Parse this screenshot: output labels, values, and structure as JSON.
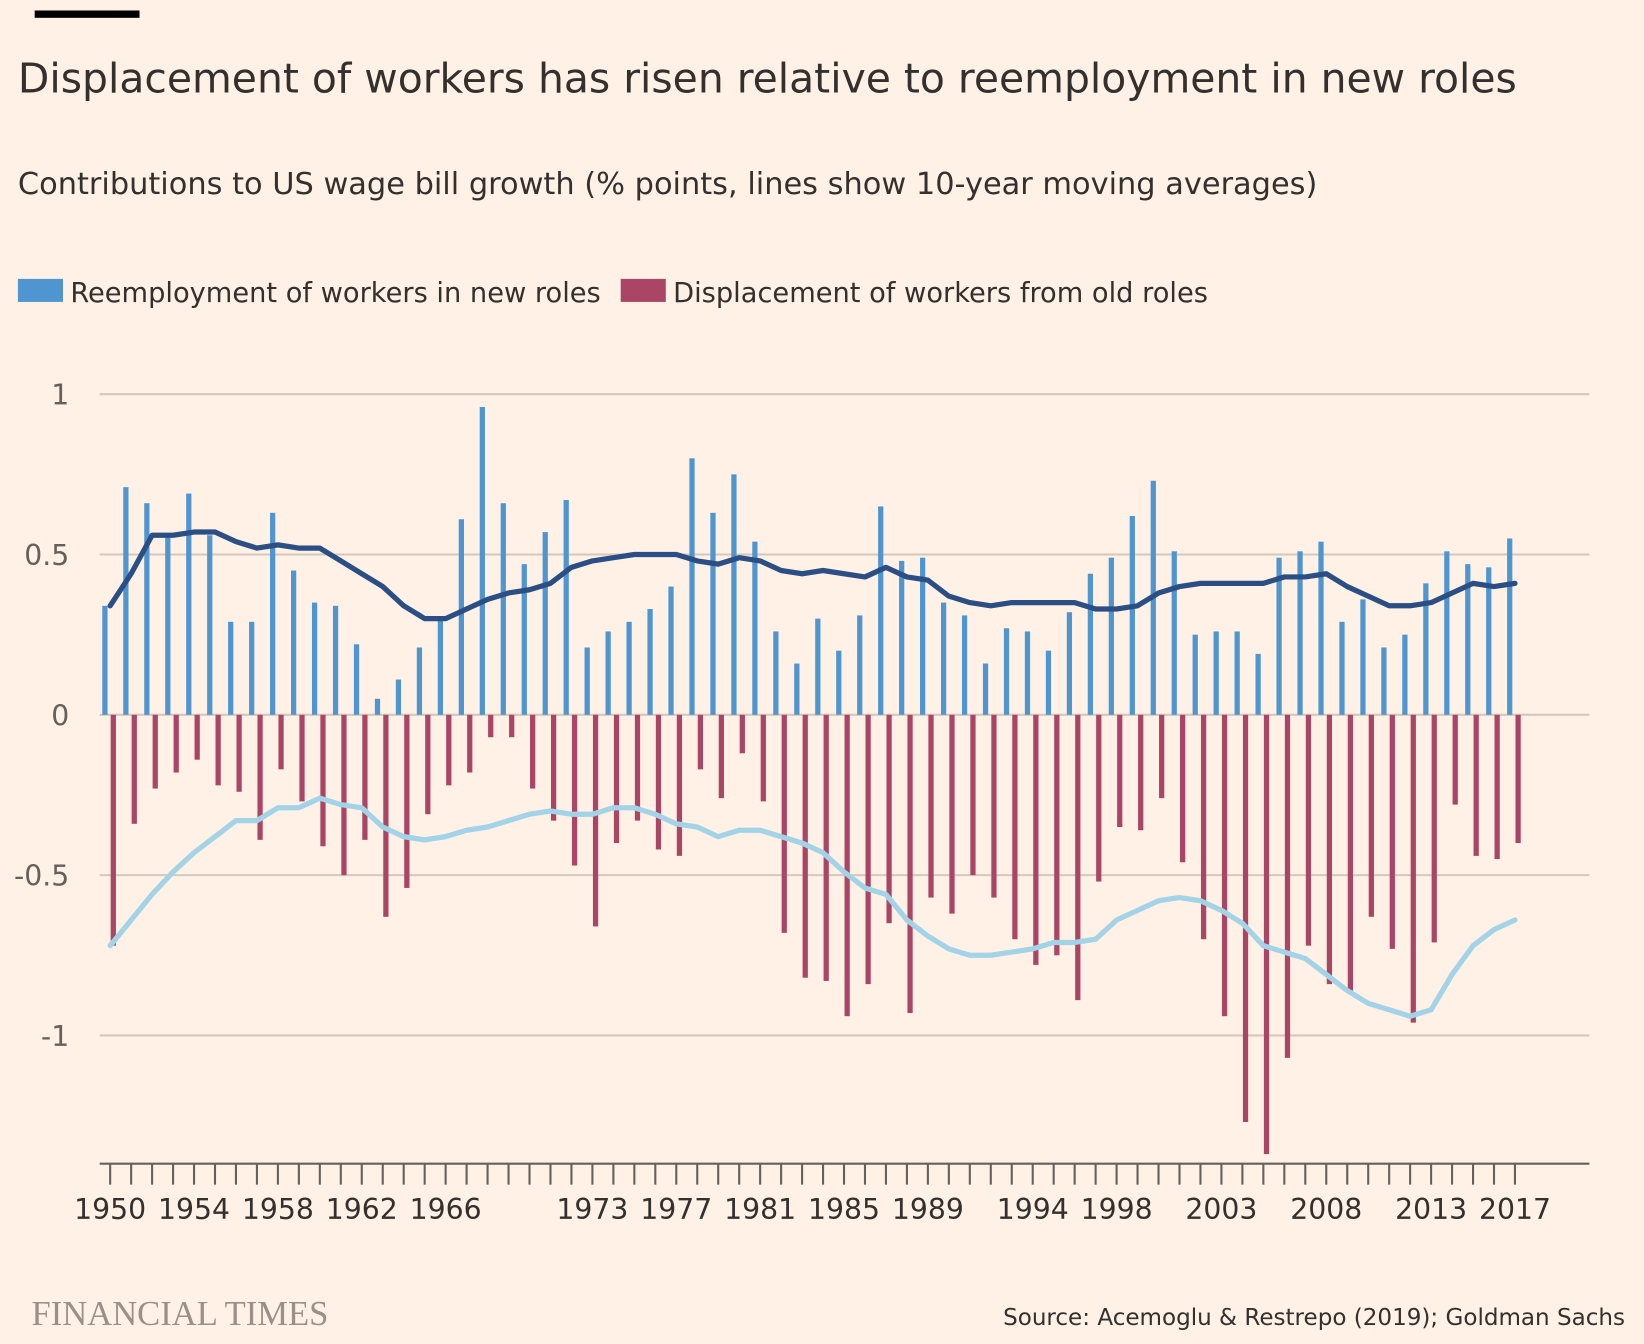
{
  "chart_data": {
    "type": "bar",
    "title": "Displacement of workers has risen relative to reemployment in new roles",
    "subtitle": "Contributions to US wage bill growth (% points, lines show 10-year moving averages)",
    "source": "Source: Acemoglu & Restrepo (2019); Goldman Sachs",
    "publisher": "FINANCIAL TIMES",
    "categories": [
      "1950",
      null,
      null,
      null,
      "1954",
      null,
      null,
      null,
      "1958",
      null,
      null,
      null,
      "1962",
      null,
      null,
      null,
      "1966",
      null,
      null,
      null,
      null,
      null,
      null,
      "1973",
      null,
      null,
      null,
      "1977",
      null,
      null,
      null,
      "1981",
      null,
      null,
      null,
      "1985",
      null,
      null,
      null,
      "1989",
      null,
      null,
      null,
      null,
      "1994",
      null,
      null,
      null,
      "1998",
      null,
      null,
      null,
      null,
      "2003",
      null,
      null,
      null,
      null,
      "2008",
      null,
      null,
      null,
      null,
      "2013",
      null,
      null,
      null,
      "2017"
    ],
    "ylim": [
      -1.4,
      1
    ],
    "yticks": [
      1,
      0.5,
      0,
      -0.5,
      -1
    ],
    "grid": true,
    "series": [
      {
        "name": "Reemployment of workers in new roles",
        "type": "bar",
        "color": "#4f95cf",
        "values": [
          0.34,
          0.71,
          0.66,
          0.56,
          0.69,
          0.56,
          0.29,
          0.29,
          0.63,
          0.45,
          0.35,
          0.34,
          0.22,
          0.05,
          0.11,
          0.21,
          0.3,
          0.61,
          0.96,
          0.66,
          0.47,
          0.57,
          0.67,
          0.21,
          0.26,
          0.29,
          0.33,
          0.4,
          0.8,
          0.63,
          0.75,
          0.54,
          0.26,
          0.16,
          0.3,
          0.2,
          0.31,
          0.65,
          0.48,
          0.49,
          0.35,
          0.31,
          0.16,
          0.27,
          0.26,
          0.2,
          0.32,
          0.44,
          0.49,
          0.62,
          0.73,
          0.51,
          0.25,
          0.26,
          0.26,
          0.19,
          0.49,
          0.51,
          0.54,
          0.29,
          0.36,
          0.21,
          0.25,
          0.41,
          0.51,
          0.47,
          0.46,
          0.55
        ]
      },
      {
        "name": "Displacement of workers from old roles",
        "type": "bar",
        "color": "#aa4565",
        "values": [
          -0.72,
          -0.34,
          -0.23,
          -0.18,
          -0.14,
          -0.22,
          -0.24,
          -0.39,
          -0.17,
          -0.27,
          -0.41,
          -0.5,
          -0.39,
          -0.63,
          -0.54,
          -0.31,
          -0.22,
          -0.18,
          -0.07,
          -0.07,
          -0.23,
          -0.33,
          -0.47,
          -0.66,
          -0.4,
          -0.33,
          -0.42,
          -0.44,
          -0.17,
          -0.26,
          -0.12,
          -0.27,
          -0.68,
          -0.82,
          -0.83,
          -0.94,
          -0.84,
          -0.65,
          -0.93,
          -0.57,
          -0.62,
          -0.5,
          -0.57,
          -0.7,
          -0.78,
          -0.75,
          -0.89,
          -0.52,
          -0.35,
          -0.36,
          -0.26,
          -0.46,
          -0.7,
          -0.94,
          -1.27,
          -1.37,
          -1.07,
          -0.72,
          -0.84,
          -0.86,
          -0.63,
          -0.73,
          -0.96,
          -0.71,
          -0.28,
          -0.44,
          -0.45,
          -0.4
        ]
      },
      {
        "type": "line",
        "color": "#2b4f84",
        "values": [
          0.34,
          0.44,
          0.56,
          0.56,
          0.57,
          0.57,
          0.54,
          0.52,
          0.53,
          0.52,
          0.52,
          0.48,
          0.44,
          0.4,
          0.34,
          0.3,
          0.3,
          0.33,
          0.36,
          0.38,
          0.39,
          0.41,
          0.46,
          0.48,
          0.49,
          0.5,
          0.5,
          0.5,
          0.48,
          0.47,
          0.49,
          0.48,
          0.45,
          0.44,
          0.45,
          0.44,
          0.43,
          0.46,
          0.43,
          0.42,
          0.37,
          0.35,
          0.34,
          0.35,
          0.35,
          0.35,
          0.35,
          0.33,
          0.33,
          0.34,
          0.38,
          0.4,
          0.41,
          0.41,
          0.41,
          0.41,
          0.43,
          0.43,
          0.44,
          0.4,
          0.37,
          0.34,
          0.34,
          0.35,
          0.38,
          0.41,
          0.4,
          0.41
        ]
      },
      {
        "type": "line",
        "color": "#a3d3e7",
        "values": [
          -0.72,
          -0.64,
          -0.56,
          -0.49,
          -0.43,
          -0.38,
          -0.33,
          -0.33,
          -0.29,
          -0.29,
          -0.26,
          -0.28,
          -0.29,
          -0.35,
          -0.38,
          -0.39,
          -0.38,
          -0.36,
          -0.35,
          -0.33,
          -0.31,
          -0.3,
          -0.31,
          -0.31,
          -0.29,
          -0.29,
          -0.31,
          -0.34,
          -0.35,
          -0.38,
          -0.36,
          -0.36,
          -0.38,
          -0.4,
          -0.43,
          -0.49,
          -0.54,
          -0.56,
          -0.64,
          -0.69,
          -0.73,
          -0.75,
          -0.75,
          -0.74,
          -0.73,
          -0.71,
          -0.71,
          -0.7,
          -0.64,
          -0.61,
          -0.58,
          -0.57,
          -0.58,
          -0.61,
          -0.65,
          -0.72,
          -0.74,
          -0.76,
          -0.81,
          -0.86,
          -0.9,
          -0.92,
          -0.94,
          -0.92,
          -0.81,
          -0.72,
          -0.67,
          -0.64
        ]
      }
    ]
  }
}
